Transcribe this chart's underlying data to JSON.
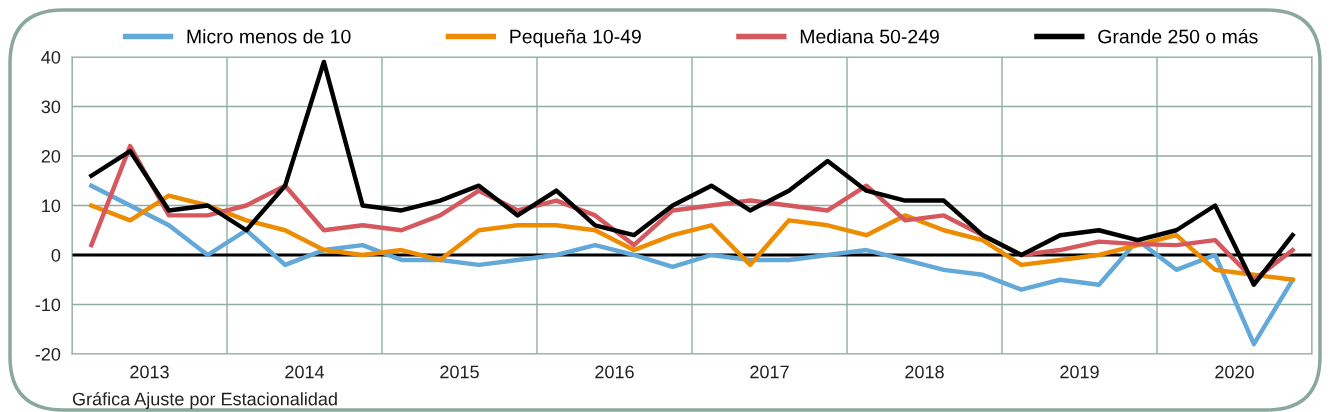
{
  "chart_data": {
    "type": "line",
    "x": [
      2013.125,
      2013.375,
      2013.625,
      2013.875,
      2014.125,
      2014.375,
      2014.625,
      2014.875,
      2015.125,
      2015.375,
      2015.625,
      2015.875,
      2016.125,
      2016.375,
      2016.625,
      2016.875,
      2017.125,
      2017.375,
      2017.625,
      2017.875,
      2018.125,
      2018.375,
      2018.625,
      2018.875,
      2019.125,
      2019.375,
      2019.625,
      2019.875,
      2020.125,
      2020.375,
      2020.625,
      2020.875
    ],
    "series": [
      {
        "name": "Micro menos de 10",
        "color": "#62a8d8",
        "values": [
          14,
          10,
          6,
          0,
          5,
          -2,
          1,
          2,
          -1,
          -1,
          -2,
          -1,
          0,
          2,
          0,
          -2.4,
          0,
          -1,
          -1,
          0,
          1,
          -1,
          -3,
          -4,
          -7,
          -5,
          -6,
          3,
          -3,
          0,
          -18,
          -5
        ]
      },
      {
        "name": "Pequeña 10-49",
        "color": "#ee8c00",
        "values": [
          10,
          7,
          12,
          10,
          7,
          5,
          1,
          0,
          1,
          -1,
          5,
          6,
          6,
          5,
          1,
          4,
          6,
          -2,
          7,
          6,
          4,
          8,
          5,
          3,
          -2,
          -1,
          0,
          2,
          4,
          -3,
          -4,
          -5
        ]
      },
      {
        "name": "Mediana 50-249",
        "color": "#d5585e",
        "values": [
          2,
          22,
          8,
          8,
          10,
          14,
          5,
          6,
          5,
          8,
          13,
          9,
          11,
          8,
          2,
          9,
          10,
          11,
          10,
          9,
          14,
          7,
          8,
          4,
          0,
          1,
          2.7,
          2.2,
          2,
          3,
          -5,
          1
        ]
      },
      {
        "name": "Grande 250 o más",
        "color": "#000000",
        "values": [
          16,
          21,
          9,
          10,
          5,
          14,
          39,
          10,
          9,
          11,
          14,
          8,
          13,
          6,
          4,
          10,
          14,
          9,
          13,
          19,
          13,
          11,
          11,
          4,
          0,
          4,
          5,
          3,
          5,
          10,
          -6,
          4
        ]
      }
    ],
    "xlim": [
      2013,
      2021
    ],
    "xticks": [
      {
        "value": 2013,
        "label": null
      },
      {
        "value": 2013.5,
        "label": "2013"
      },
      {
        "value": 2014,
        "label": null
      },
      {
        "value": 2014.5,
        "label": "2014"
      },
      {
        "value": 2015,
        "label": null
      },
      {
        "value": 2015.5,
        "label": "2015"
      },
      {
        "value": 2016,
        "label": null
      },
      {
        "value": 2016.5,
        "label": "2016"
      },
      {
        "value": 2017,
        "label": null
      },
      {
        "value": 2017.5,
        "label": "2017"
      },
      {
        "value": 2018,
        "label": null
      },
      {
        "value": 2018.5,
        "label": "2018"
      },
      {
        "value": 2019,
        "label": null
      },
      {
        "value": 2019.5,
        "label": "2019"
      },
      {
        "value": 2020,
        "label": null
      },
      {
        "value": 2020.5,
        "label": "2020"
      },
      {
        "value": 2021,
        "label": null
      }
    ],
    "ylim": [
      -20,
      40
    ],
    "yticks": [
      -20,
      -10,
      0,
      10,
      20,
      30,
      40
    ],
    "ref_lines": [
      {
        "axis": "y",
        "value": 0,
        "color": "#000000"
      }
    ],
    "annotations": [
      "Gráfica Ajuste por Estacionalidad"
    ],
    "grid": true,
    "legend": "top",
    "marker": "none",
    "line_style": "solid"
  }
}
